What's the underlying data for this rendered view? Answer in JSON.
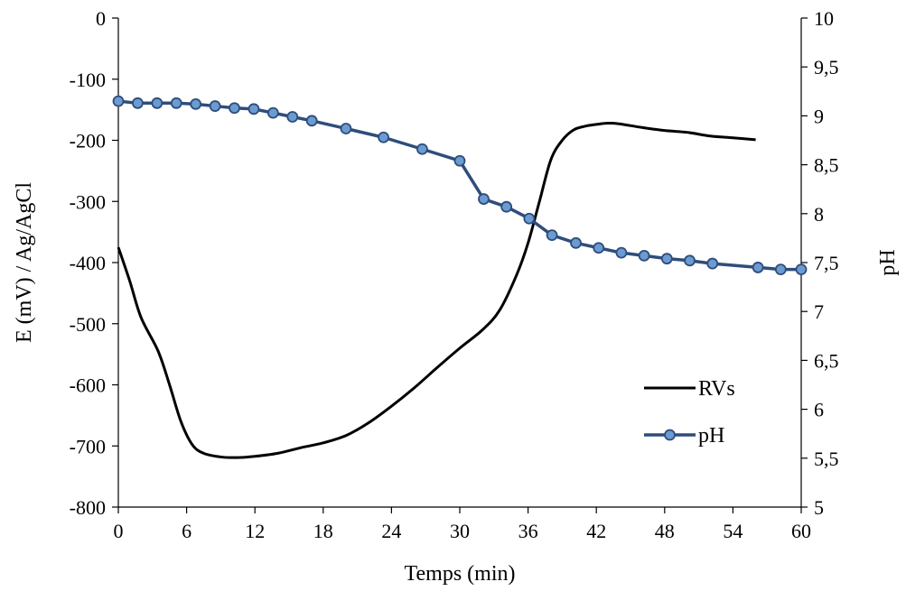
{
  "chart_data": {
    "type": "line",
    "xlabel": "Temps (min)",
    "ylabel": "E (mV) / Ag/AgCl",
    "y2label": "pH",
    "xlim": [
      0,
      60
    ],
    "ylim": [
      -800,
      0
    ],
    "y2lim": [
      5,
      10
    ],
    "x_ticks": [
      "0",
      "6",
      "12",
      "18",
      "24",
      "30",
      "36",
      "42",
      "48",
      "54",
      "60"
    ],
    "y_ticks": [
      "0",
      "-100",
      "-200",
      "-300",
      "-400",
      "-500",
      "-600",
      "-700",
      "-800"
    ],
    "y2_ticks": [
      "10",
      "9,5",
      "9",
      "8,5",
      "8",
      "7,5",
      "7",
      "6,5",
      "6",
      "5,5",
      "5"
    ],
    "grid": false,
    "legend_position": "lower-right",
    "series": [
      {
        "name": "RVs",
        "axis": "left",
        "color": "#000000",
        "marker": "none",
        "points": [
          [
            0,
            -375
          ],
          [
            1,
            -430
          ],
          [
            2,
            -490
          ],
          [
            3.5,
            -545
          ],
          [
            4.5,
            -600
          ],
          [
            5.5,
            -660
          ],
          [
            6.5,
            -698
          ],
          [
            7.5,
            -712
          ],
          [
            9,
            -718
          ],
          [
            10.5,
            -719
          ],
          [
            12,
            -717
          ],
          [
            14,
            -712
          ],
          [
            16,
            -703
          ],
          [
            18,
            -695
          ],
          [
            20,
            -683
          ],
          [
            22,
            -662
          ],
          [
            24,
            -635
          ],
          [
            26,
            -605
          ],
          [
            28,
            -572
          ],
          [
            30,
            -540
          ],
          [
            32,
            -510
          ],
          [
            33.5,
            -478
          ],
          [
            35,
            -420
          ],
          [
            36,
            -368
          ],
          [
            37,
            -300
          ],
          [
            38,
            -232
          ],
          [
            39,
            -200
          ],
          [
            40,
            -183
          ],
          [
            41,
            -177
          ],
          [
            42,
            -174
          ],
          [
            43,
            -172
          ],
          [
            44,
            -173
          ],
          [
            46,
            -179
          ],
          [
            48,
            -184
          ],
          [
            50,
            -187
          ],
          [
            52,
            -193
          ],
          [
            54,
            -196
          ],
          [
            56,
            -199
          ]
        ]
      },
      {
        "name": "pH",
        "axis": "right",
        "color": "#2e4d7b",
        "marker": "circle",
        "marker_color": "#6b9bd1",
        "points": [
          [
            0,
            9.15
          ],
          [
            1.7,
            9.13
          ],
          [
            3.4,
            9.13
          ],
          [
            5.1,
            9.13
          ],
          [
            6.8,
            9.12
          ],
          [
            8.5,
            9.1
          ],
          [
            10.2,
            9.08
          ],
          [
            11.9,
            9.07
          ],
          [
            13.6,
            9.03
          ],
          [
            15.3,
            8.99
          ],
          [
            17,
            8.95
          ],
          [
            20,
            8.87
          ],
          [
            23.3,
            8.78
          ],
          [
            26.7,
            8.66
          ],
          [
            30,
            8.54
          ],
          [
            32.1,
            8.15
          ],
          [
            34.1,
            8.07
          ],
          [
            36.1,
            7.95
          ],
          [
            38.1,
            7.78
          ],
          [
            40.2,
            7.7
          ],
          [
            42.2,
            7.65
          ],
          [
            44.2,
            7.6
          ],
          [
            46.2,
            7.57
          ],
          [
            48.2,
            7.54
          ],
          [
            50.2,
            7.52
          ],
          [
            52.2,
            7.49
          ],
          [
            56.2,
            7.45
          ],
          [
            58.2,
            7.43
          ],
          [
            60,
            7.43
          ]
        ]
      }
    ]
  }
}
